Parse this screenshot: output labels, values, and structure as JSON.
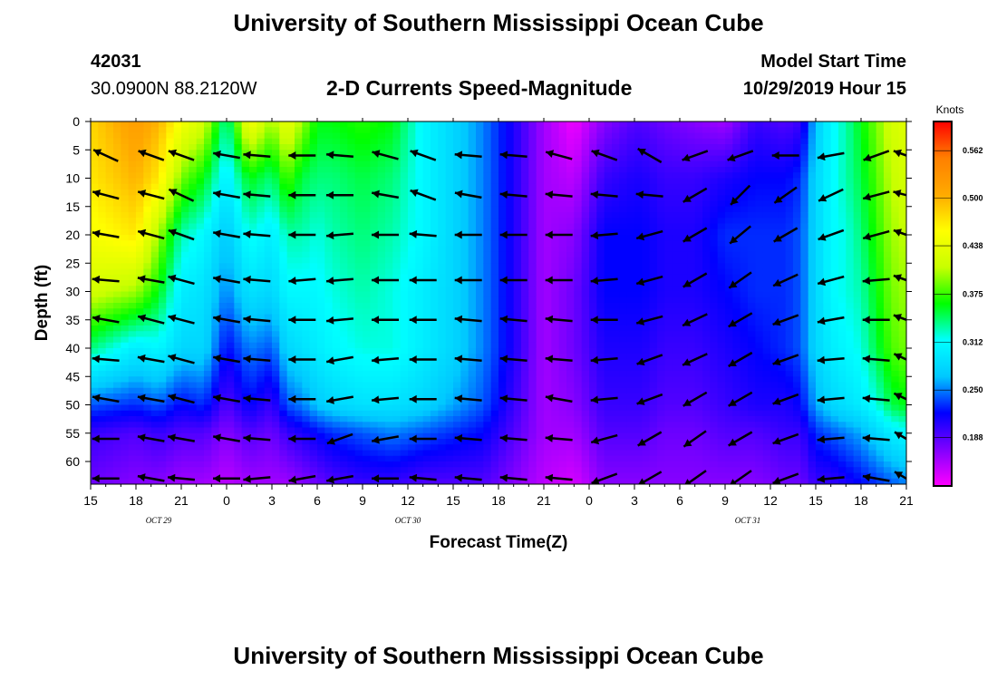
{
  "header": {
    "title": "University of Southern Mississippi Ocean Cube",
    "station_id": "42031",
    "coords": "30.0900N 88.2120W",
    "subtitle": "2-D Currents Speed-Magnitude",
    "model_start_label": "Model Start Time",
    "model_start_value": "10/29/2019 Hour 15"
  },
  "footer": {
    "title": "University of Southern Mississippi Ocean Cube"
  },
  "chart_data": {
    "type": "heatmap",
    "title": "2-D Currents Speed-Magnitude",
    "xlabel": "Forecast Time(Z)",
    "ylabel": "Depth (ft)",
    "x_ticks": [
      "15",
      "18",
      "21",
      "0",
      "3",
      "6",
      "9",
      "12",
      "15",
      "18",
      "21",
      "0",
      "3",
      "6",
      "9",
      "12",
      "15",
      "18",
      "21"
    ],
    "x_range_hours": [
      0,
      54
    ],
    "date_labels": [
      {
        "text": "OCT 29",
        "hour": 4.5
      },
      {
        "text": "OCT 30",
        "hour": 21
      },
      {
        "text": "OCT 31",
        "hour": 43.5
      }
    ],
    "y_ticks": [
      0,
      5,
      10,
      15,
      20,
      25,
      30,
      35,
      40,
      45,
      50,
      55,
      60
    ],
    "ylim": [
      0,
      64
    ],
    "colorbar": {
      "unit": "Knots",
      "ticks": [
        0.188,
        0.25,
        0.312,
        0.375,
        0.438,
        0.5,
        0.562
      ],
      "range": [
        0.125,
        0.6
      ],
      "colors": [
        "#ff00ff",
        "#8000ff",
        "#0000ff",
        "#00c8ff",
        "#00ffff",
        "#00ff00",
        "#c8ff00",
        "#ffff00",
        "#ffaa00",
        "#ff7f00",
        "#ff0000"
      ]
    },
    "speed_profiles": {
      "times": [
        0,
        3,
        4.5,
        6,
        7.5,
        9,
        10.5,
        12,
        13,
        14,
        15,
        16,
        18,
        20,
        22,
        24,
        26,
        28,
        30,
        32,
        34,
        36,
        36.5,
        38,
        40,
        42,
        44,
        46,
        47,
        48,
        49,
        50,
        51,
        52,
        53,
        54
      ],
      "depths": [
        0,
        10,
        20,
        30,
        40,
        50,
        55,
        64
      ],
      "values": [
        [
          0.48,
          0.47,
          0.45,
          0.42,
          0.34,
          0.24,
          0.2,
          0.18
        ],
        [
          0.52,
          0.5,
          0.47,
          0.4,
          0.3,
          0.23,
          0.19,
          0.17
        ],
        [
          0.5,
          0.47,
          0.4,
          0.36,
          0.31,
          0.24,
          0.2,
          0.17
        ],
        [
          0.45,
          0.39,
          0.33,
          0.3,
          0.28,
          0.22,
          0.19,
          0.16
        ],
        [
          0.42,
          0.36,
          0.31,
          0.29,
          0.28,
          0.23,
          0.19,
          0.16
        ],
        [
          0.33,
          0.3,
          0.27,
          0.25,
          0.22,
          0.19,
          0.17,
          0.15
        ],
        [
          0.45,
          0.36,
          0.32,
          0.29,
          0.25,
          0.22,
          0.19,
          0.16
        ],
        [
          0.4,
          0.34,
          0.3,
          0.28,
          0.24,
          0.2,
          0.18,
          0.16
        ],
        [
          0.44,
          0.38,
          0.33,
          0.31,
          0.28,
          0.24,
          0.2,
          0.16
        ],
        [
          0.4,
          0.35,
          0.33,
          0.31,
          0.29,
          0.25,
          0.21,
          0.17
        ],
        [
          0.36,
          0.34,
          0.32,
          0.31,
          0.3,
          0.27,
          0.22,
          0.18
        ],
        [
          0.36,
          0.34,
          0.33,
          0.32,
          0.31,
          0.28,
          0.23,
          0.19
        ],
        [
          0.37,
          0.35,
          0.34,
          0.33,
          0.32,
          0.29,
          0.24,
          0.2
        ],
        [
          0.36,
          0.34,
          0.33,
          0.32,
          0.32,
          0.29,
          0.25,
          0.2
        ],
        [
          0.31,
          0.31,
          0.31,
          0.3,
          0.3,
          0.28,
          0.24,
          0.19
        ],
        [
          0.28,
          0.28,
          0.28,
          0.28,
          0.28,
          0.26,
          0.23,
          0.19
        ],
        [
          0.25,
          0.25,
          0.25,
          0.25,
          0.25,
          0.24,
          0.22,
          0.19
        ],
        [
          0.21,
          0.21,
          0.21,
          0.21,
          0.21,
          0.2,
          0.19,
          0.17
        ],
        [
          0.16,
          0.16,
          0.16,
          0.16,
          0.16,
          0.16,
          0.16,
          0.15
        ],
        [
          0.13,
          0.15,
          0.17,
          0.18,
          0.18,
          0.17,
          0.16,
          0.14
        ],
        [
          0.17,
          0.2,
          0.22,
          0.22,
          0.21,
          0.2,
          0.19,
          0.17
        ],
        [
          0.19,
          0.21,
          0.22,
          0.22,
          0.21,
          0.2,
          0.19,
          0.17
        ],
        [
          0.19,
          0.21,
          0.22,
          0.22,
          0.21,
          0.2,
          0.19,
          0.17
        ],
        [
          0.18,
          0.2,
          0.21,
          0.21,
          0.2,
          0.19,
          0.18,
          0.17
        ],
        [
          0.17,
          0.2,
          0.21,
          0.21,
          0.2,
          0.19,
          0.18,
          0.17
        ],
        [
          0.16,
          0.21,
          0.23,
          0.22,
          0.21,
          0.2,
          0.19,
          0.17
        ],
        [
          0.2,
          0.22,
          0.23,
          0.23,
          0.22,
          0.21,
          0.19,
          0.17
        ],
        [
          0.19,
          0.22,
          0.23,
          0.23,
          0.23,
          0.21,
          0.2,
          0.18
        ],
        [
          0.2,
          0.23,
          0.24,
          0.24,
          0.24,
          0.22,
          0.2,
          0.18
        ],
        [
          0.27,
          0.28,
          0.28,
          0.28,
          0.28,
          0.26,
          0.23,
          0.2
        ],
        [
          0.31,
          0.31,
          0.31,
          0.31,
          0.3,
          0.28,
          0.24,
          0.2
        ],
        [
          0.33,
          0.33,
          0.32,
          0.32,
          0.31,
          0.29,
          0.25,
          0.21
        ],
        [
          0.36,
          0.35,
          0.34,
          0.33,
          0.32,
          0.3,
          0.26,
          0.22
        ],
        [
          0.39,
          0.38,
          0.37,
          0.36,
          0.35,
          0.32,
          0.28,
          0.23
        ],
        [
          0.42,
          0.41,
          0.4,
          0.39,
          0.38,
          0.35,
          0.3,
          0.24
        ],
        [
          0.43,
          0.42,
          0.41,
          0.4,
          0.39,
          0.36,
          0.31,
          0.25
        ]
      ]
    },
    "vectors": {
      "times": [
        1,
        4,
        6,
        9,
        11,
        14,
        16.5,
        19.5,
        22,
        25,
        28,
        31,
        34,
        37,
        40,
        43,
        46,
        49,
        52,
        54
      ],
      "depths": [
        6,
        13,
        20,
        28,
        35,
        42,
        49,
        56,
        63
      ],
      "direction_deg": [
        [
          155,
          160,
          160,
          170,
          175,
          180,
          175,
          165,
          160,
          175,
          175,
          165,
          160,
          150,
          200,
          200,
          180,
          190,
          200,
          160
        ],
        [
          165,
          165,
          155,
          170,
          175,
          180,
          180,
          170,
          160,
          170,
          175,
          175,
          175,
          175,
          210,
          225,
          215,
          205,
          195,
          165
        ],
        [
          170,
          165,
          160,
          170,
          175,
          180,
          185,
          180,
          175,
          180,
          180,
          180,
          185,
          195,
          210,
          220,
          210,
          200,
          195,
          160
        ],
        [
          175,
          170,
          165,
          170,
          175,
          185,
          185,
          180,
          180,
          180,
          180,
          180,
          185,
          195,
          210,
          215,
          205,
          195,
          185,
          160
        ],
        [
          170,
          165,
          165,
          170,
          175,
          180,
          185,
          180,
          180,
          175,
          175,
          175,
          180,
          195,
          205,
          210,
          200,
          190,
          180,
          160
        ],
        [
          175,
          170,
          165,
          170,
          175,
          180,
          190,
          185,
          180,
          175,
          175,
          175,
          185,
          200,
          205,
          210,
          200,
          185,
          175,
          155
        ],
        [
          170,
          170,
          165,
          170,
          175,
          180,
          190,
          185,
          180,
          175,
          175,
          170,
          185,
          200,
          210,
          210,
          200,
          185,
          175,
          155
        ],
        [
          180,
          170,
          170,
          170,
          175,
          180,
          200,
          190,
          180,
          175,
          175,
          175,
          195,
          210,
          215,
          210,
          200,
          185,
          175,
          150
        ],
        [
          180,
          170,
          175,
          180,
          185,
          190,
          190,
          180,
          175,
          175,
          175,
          175,
          200,
          210,
          215,
          215,
          200,
          185,
          170,
          150
        ]
      ]
    }
  }
}
